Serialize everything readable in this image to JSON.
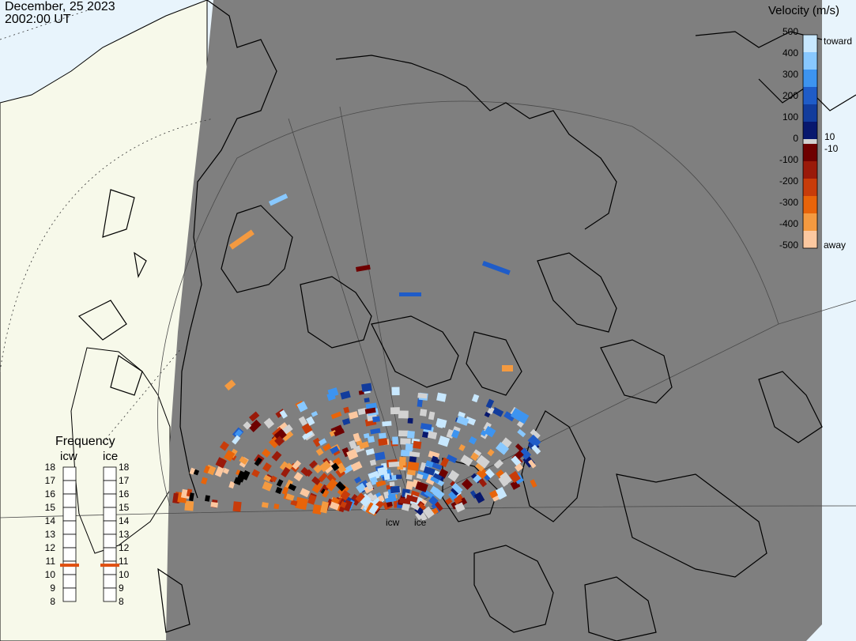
{
  "title": {
    "date": "December, 25 2023",
    "time": "2002:00 UT"
  },
  "velocity_scale": {
    "title": "Velocity (m/s)",
    "positive_ticks": [
      "500",
      "400",
      "300",
      "200",
      "100",
      "10"
    ],
    "zero_tick": "0",
    "negative_ticks": [
      "-10",
      "-100",
      "-200",
      "-300",
      "-400",
      "-500"
    ],
    "toward_label": "toward",
    "away_label": "away",
    "toward_colors": [
      "#c8e8ff",
      "#88c8ff",
      "#3d94f0",
      "#1f5cc8",
      "#123c9c",
      "#08186e"
    ],
    "away_colors": [
      "#6e0000",
      "#9a1a0a",
      "#c83c0a",
      "#e8640a",
      "#f49a40",
      "#fcc8a0"
    ],
    "gs_color": "#d2d2d2"
  },
  "frequency_panel": {
    "title": "Frequency",
    "radars": [
      {
        "label": "icw",
        "current_mhz": 10.7
      },
      {
        "label": "ice",
        "current_mhz": 10.7
      }
    ],
    "ticks": [
      "8",
      "9",
      "10",
      "11",
      "12",
      "13",
      "14",
      "15",
      "16",
      "17",
      "18"
    ],
    "indicator_color": "#e05010"
  },
  "radar_sites": [
    {
      "label": "icw"
    },
    {
      "label": "ice"
    }
  ],
  "map_colors": {
    "ocean": "#e8f4fc",
    "land_sunlit": "#f7f9ea",
    "night_shade": "#7f7f7f",
    "coastline": "#000000",
    "grid": "#555555"
  }
}
